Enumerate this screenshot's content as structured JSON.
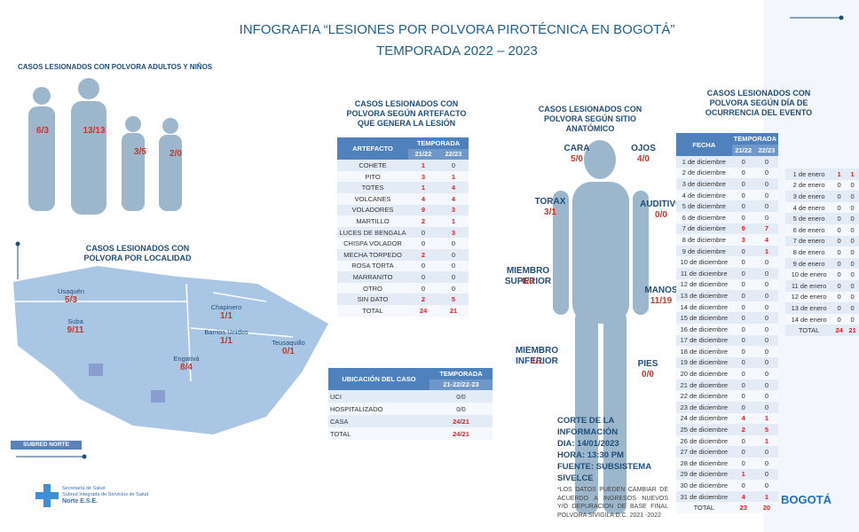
{
  "header": {
    "title": "INFOGRAFIA  “LESIONES POR POLVORA PIROTÉCNICA EN BOGOTÁ”",
    "subtitle": "TEMPORADA 2022 – 2023"
  },
  "adults_children": {
    "title": "CASOS LESIONADOS CON POLVORA ADULTOS Y NIÑOS",
    "figures": [
      "6/3",
      "13/13",
      "3/5",
      "2/0"
    ]
  },
  "localidad": {
    "title": "CASOS LESIONADOS CON POLVORA POR LOCALIDAD",
    "regions": [
      {
        "name": "Usaquén",
        "value": "5/3"
      },
      {
        "name": "Suba",
        "value": "9/11"
      },
      {
        "name": "Chapinero",
        "value": "1/1"
      },
      {
        "name": "Barrios Unidos",
        "value": "1/1"
      },
      {
        "name": "Teusaquillo",
        "value": "0/1"
      },
      {
        "name": "Engativá",
        "value": "8/4"
      }
    ],
    "footer": "SUBRED NORTE"
  },
  "artefacto": {
    "title": "CASOS LESIONADOS CON POLVORA SEGÚN ARTEFACTO QUE GENERA LA LESIÓN",
    "headers": [
      "ARTEFACTO",
      "TEMPORADA",
      "21/22",
      "22/23"
    ],
    "rows": [
      [
        "COHETE",
        1,
        0
      ],
      [
        "PITO",
        3,
        1
      ],
      [
        "TOTES",
        1,
        4
      ],
      [
        "VOLCANES",
        4,
        4
      ],
      [
        "VOLADORES",
        9,
        3
      ],
      [
        "MARTILLO",
        2,
        1
      ],
      [
        "LUCES DE BENGALA",
        0,
        3
      ],
      [
        "CHISPA VOLADOR",
        0,
        0
      ],
      [
        "MECHA TORPEDO",
        2,
        0
      ],
      [
        "ROSA TORTA",
        0,
        0
      ],
      [
        "MARRANITO",
        0,
        0
      ],
      [
        "OTRO",
        0,
        0
      ],
      [
        "SIN DATO",
        2,
        5
      ],
      [
        "TOTAL",
        24,
        21
      ]
    ]
  },
  "ubicacion": {
    "headers": [
      "UBICACIÓN DEL CASO",
      "TEMPORADA",
      "21-22/22-23"
    ],
    "rows": [
      [
        "UCI",
        "0/0"
      ],
      [
        "HOSPITALIZADO",
        "0/0"
      ],
      [
        "CASA",
        "24/21"
      ],
      [
        "TOTAL",
        "24/21"
      ]
    ]
  },
  "anatomico": {
    "title": "CASOS LESIONADOS CON POLVORA SEGÚN SITIO ANATÓMICO",
    "sites": [
      {
        "name": "CARA",
        "value": "5/0"
      },
      {
        "name": "OJOS",
        "value": "4/0"
      },
      {
        "name": "TORAX",
        "value": "3/1"
      },
      {
        "name": "AUDITIVO",
        "value": "0/0"
      },
      {
        "name": "MIEMBRO SUPERIOR",
        "value": "0/0"
      },
      {
        "name": "MANOS",
        "value": "11/19"
      },
      {
        "name": "MIEMBRO INFERIOR",
        "value": "1/1"
      },
      {
        "name": "PIES",
        "value": "0/0"
      }
    ]
  },
  "corte": {
    "title": "CORTE DE LA INFORMACIÓN",
    "lines": [
      "DIA: 14/01/2023",
      "HORA: 13:30 PM",
      "FUENTE: SUBSISTEMA SIVELCE"
    ],
    "note": "*LOS DATOS PUEDEN CAMBIAR DE ACUERDO A INGRESOS NUEVOS Y/O DEPURACION DE BASE FINAL POLVORA SIVIGILA D.C. 2021 -2022"
  },
  "dia": {
    "title": "CASOS LESIONADOS CON POLVORA SEGÚN DÍA DE OCURRENCIA DEL EVENTO",
    "headers": [
      "FECHA",
      "TEMPORADA",
      "21/22",
      "22/23"
    ],
    "december": [
      [
        "1 de diciembre",
        0,
        0
      ],
      [
        "2 de diciembre",
        0,
        0
      ],
      [
        "3 de diciembre",
        0,
        0
      ],
      [
        "4 de diciembre",
        0,
        0
      ],
      [
        "5 de diciembre",
        0,
        0
      ],
      [
        "6 de diciembre",
        0,
        0
      ],
      [
        "7 de diciembre",
        9,
        7
      ],
      [
        "8 de diciembre",
        3,
        4
      ],
      [
        "9 de diciembre",
        0,
        1
      ],
      [
        "10 de diciembre",
        0,
        0
      ],
      [
        "11 de diciembre",
        0,
        0
      ],
      [
        "12 de diciembre",
        0,
        0
      ],
      [
        "13 de diciembre",
        0,
        0
      ],
      [
        "14 de diciembre",
        0,
        0
      ],
      [
        "15 de diciembre",
        0,
        0
      ],
      [
        "16 de diciembre",
        0,
        0
      ],
      [
        "17 de diciembre",
        0,
        0
      ],
      [
        "18 de diciembre",
        0,
        0
      ],
      [
        "19 de diciembre",
        0,
        0
      ],
      [
        "20 de diciembre",
        0,
        0
      ],
      [
        "21 de diciembre",
        0,
        0
      ],
      [
        "22 de diciembre",
        0,
        0
      ],
      [
        "23 de diciembre",
        0,
        0
      ],
      [
        "24 de diciembre",
        4,
        1
      ],
      [
        "25 de diciembre",
        2,
        5
      ],
      [
        "26 de diciembre",
        0,
        1
      ],
      [
        "27 de diciembre",
        0,
        0
      ],
      [
        "28 de diciembre",
        0,
        0
      ],
      [
        "29 de diciembre",
        1,
        0
      ],
      [
        "30 de diciembre",
        0,
        0
      ],
      [
        "31 de diciembre",
        4,
        1
      ],
      [
        "TOTAL",
        23,
        20
      ]
    ],
    "january": [
      [
        "1 de enero",
        1,
        1
      ],
      [
        "2 de enero",
        0,
        0
      ],
      [
        "3 de enero",
        0,
        0
      ],
      [
        "4 de enero",
        0,
        0
      ],
      [
        "5 de enero",
        0,
        0
      ],
      [
        "6 de enero",
        0,
        0
      ],
      [
        "7 de enero",
        0,
        0
      ],
      [
        "8 de enero",
        0,
        0
      ],
      [
        "9 de enero",
        0,
        0
      ],
      [
        "10 de enero",
        0,
        0
      ],
      [
        "11 de enero",
        0,
        0
      ],
      [
        "12 de enero",
        0,
        0
      ],
      [
        "13 de enero",
        0,
        0
      ],
      [
        "14 de enero",
        0,
        0
      ],
      [
        "TOTAL",
        24,
        21
      ]
    ]
  },
  "logos": {
    "entity": [
      "Secretaría de Salud",
      "Subred Integrada de Servicios de Salud",
      "Norte E.S.E."
    ],
    "city": "BOGOTÁ"
  }
}
